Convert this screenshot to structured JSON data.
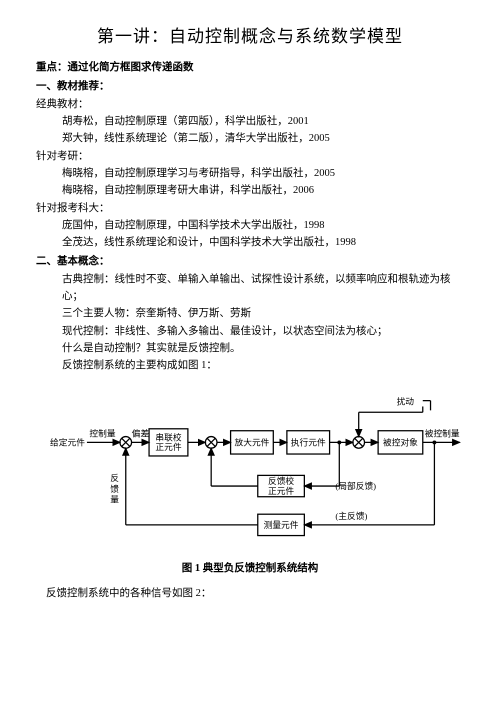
{
  "title": "第一讲：自动控制概念与系统数学模型",
  "emphasis": "重点：通过化简方框图求传递函数",
  "sec1_header": "一、教材推荐：",
  "sec1": {
    "l1": "经典教材：",
    "l2": "胡寿松，自动控制原理（第四版），科学出版社，2001",
    "l3": "郑大钟，线性系统理论（第二版），清华大学出版社，2005",
    "l4": "针对考研：",
    "l5": "梅晓榕，自动控制原理学习与考研指导，科学出版社，2005",
    "l6": "梅晓榕，自动控制原理考研大串讲，科学出版社，2006",
    "l7": "针对报考科大：",
    "l8": "庞国仲，自动控制原理，中国科学技术大学出版社，1998",
    "l9": "全茂达，线性系统理论和设计，中国科学技术大学出版社，1998"
  },
  "sec2_header": "二、基本概念：",
  "sec2": {
    "l1": "古典控制：线性时不变、单输入单输出、试探性设计系统，以频率响应和根轨迹为核心；",
    "l2": "三个主要人物：奈奎斯特、伊万斯、劳斯",
    "l3": "现代控制：非线性、多输入多输出、最佳设计，以状态空间法为核心；",
    "l4": "什么是自动控制？其实就是反馈控制。",
    "l5": "反馈控制系统的主要构成如图 1："
  },
  "diagram": {
    "bg": "#ffffff",
    "stroke": "#000000",
    "strokeWidth": 1.3,
    "font": "SimSun, serif",
    "fontsize_block": 9,
    "fontsize_label": 9,
    "arrowFill": "#000000",
    "labels": {
      "given": "给定元件",
      "ctrlqty": "控制量",
      "err": "偏差",
      "serial": "串联校正元件",
      "amp": "放大元件",
      "exec": "执行元件",
      "plant": "被控对象",
      "outqty": "被控制量",
      "disturb": "扰动",
      "fbcomp": "反馈校正元件",
      "localfb": "(局部反馈)",
      "meas": "测量元件",
      "mainfb": "(主反馈)",
      "fbqty": "反馈量"
    }
  },
  "caption": "图 1    典型负反馈控制系统结构",
  "after": "反馈控制系统中的各种信号如图 2："
}
